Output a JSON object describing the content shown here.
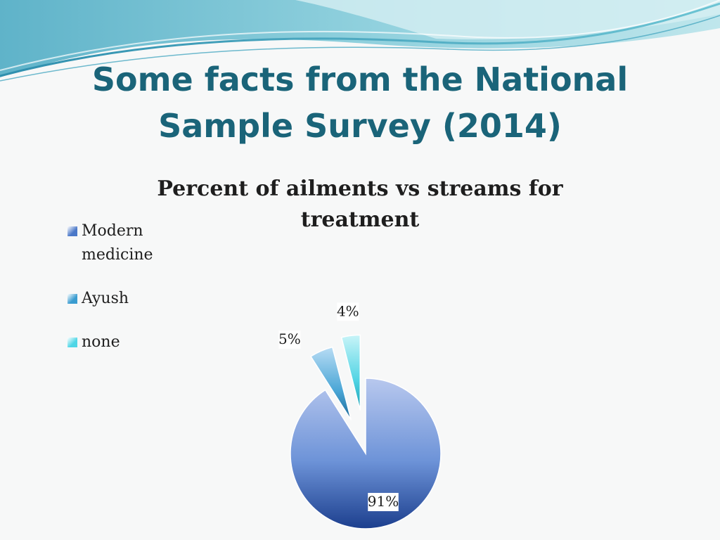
{
  "slide": {
    "title": "Some facts from the National Sample Survey (2014)"
  },
  "chart_data": {
    "type": "pie",
    "title": "Percent of ailments vs streams for treatment",
    "categories": [
      "Modern medicine",
      "Ayush",
      "none"
    ],
    "values": [
      91,
      5,
      4
    ],
    "data_labels": [
      "91%",
      "5%",
      "4%"
    ],
    "colors": [
      "#4a78c8",
      "#3a9cd0",
      "#4fd6e6"
    ],
    "legend_position": "left",
    "exploded": true
  }
}
